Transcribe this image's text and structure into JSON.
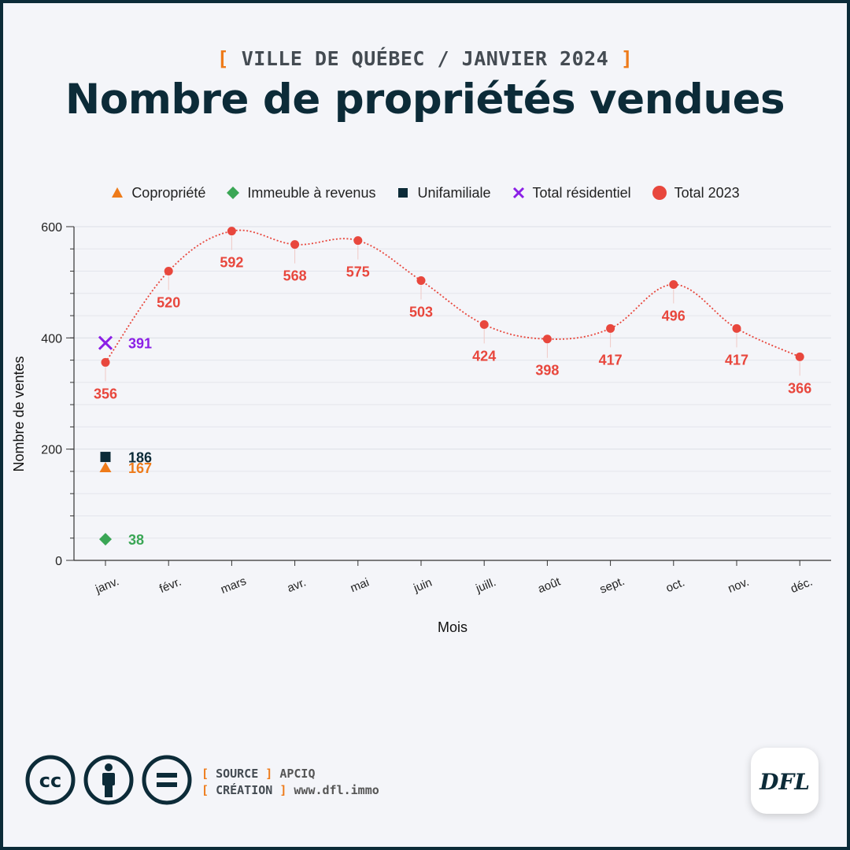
{
  "header": {
    "kicker_open": "[",
    "kicker_text": "VILLE DE QUÉBEC / JANVIER 2024",
    "kicker_close": "]",
    "title": "Nombre de propriétés vendues"
  },
  "legend": [
    {
      "label": "Copropriété",
      "color": "#ee7b1a",
      "marker": "triangle"
    },
    {
      "label": "Immeuble à revenus",
      "color": "#3aa655",
      "marker": "diamond"
    },
    {
      "label": "Unifamiliale",
      "color": "#0c2b38",
      "marker": "square"
    },
    {
      "label": "Total résidentiel",
      "color": "#8b1fe6",
      "marker": "x"
    },
    {
      "label": "Total 2023",
      "color": "#e8473d",
      "marker": "circle"
    }
  ],
  "chart_data": {
    "type": "line",
    "title": "Nombre de propriétés vendues",
    "xlabel": "Mois",
    "ylabel": "Nombre de ventes",
    "categories": [
      "janv.",
      "févr.",
      "mars",
      "avr.",
      "mai",
      "juin",
      "juill.",
      "août",
      "sept.",
      "oct.",
      "nov.",
      "déc."
    ],
    "ylim": [
      0,
      600
    ],
    "yticks": [
      0,
      200,
      400,
      600
    ],
    "grid": true,
    "legend_position": "top",
    "series": [
      {
        "name": "Total 2023",
        "type": "line",
        "color": "#e8473d",
        "marker": "circle",
        "values": [
          356,
          520,
          592,
          568,
          575,
          503,
          424,
          398,
          417,
          496,
          417,
          366
        ]
      },
      {
        "name": "Total résidentiel",
        "type": "scatter",
        "color": "#8b1fe6",
        "marker": "x",
        "values": [
          391,
          null,
          null,
          null,
          null,
          null,
          null,
          null,
          null,
          null,
          null,
          null
        ]
      },
      {
        "name": "Unifamiliale",
        "type": "scatter",
        "color": "#0c2b38",
        "marker": "square",
        "values": [
          186,
          null,
          null,
          null,
          null,
          null,
          null,
          null,
          null,
          null,
          null,
          null
        ]
      },
      {
        "name": "Copropriété",
        "type": "scatter",
        "color": "#ee7b1a",
        "marker": "triangle",
        "values": [
          167,
          null,
          null,
          null,
          null,
          null,
          null,
          null,
          null,
          null,
          null,
          null
        ]
      },
      {
        "name": "Immeuble à revenus",
        "type": "scatter",
        "color": "#3aa655",
        "marker": "diamond",
        "values": [
          38,
          null,
          null,
          null,
          null,
          null,
          null,
          null,
          null,
          null,
          null,
          null
        ]
      }
    ]
  },
  "footer": {
    "source_label": "SOURCE",
    "source_value": "APCIQ",
    "creation_label": "CRÉATION",
    "creation_value": "www.dfl.immo",
    "license_icons": [
      "cc-icon",
      "attribution-icon",
      "no-derivatives-icon"
    ],
    "logo_text": "DFL"
  }
}
